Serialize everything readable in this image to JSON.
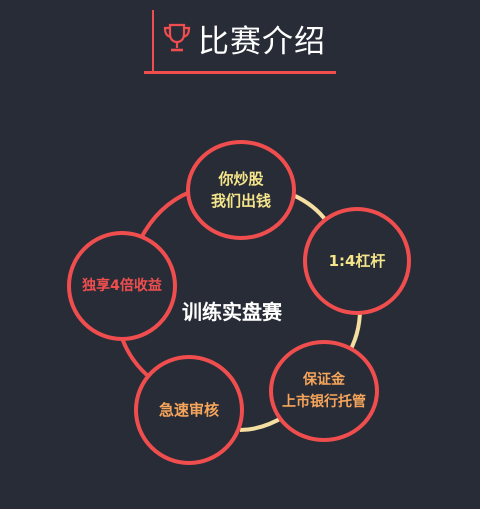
{
  "header": {
    "title": "比赛介绍",
    "icon": "trophy-icon"
  },
  "center": {
    "label": "训练实盘赛"
  },
  "colors": {
    "background": "#282c37",
    "accent_red": "#f04e4e",
    "ring_line": "#f5dfa0",
    "text_yellow": "#f5e58a",
    "text_orange": "#f6a55a",
    "text_red": "#f04e4e"
  },
  "nodes": [
    {
      "lines": [
        "你炒股",
        "我们出钱"
      ]
    },
    {
      "lines": [
        "1:4杠杆"
      ]
    },
    {
      "lines": [
        "保证金",
        "上市银行托管"
      ]
    },
    {
      "lines": [
        "急速审核"
      ]
    },
    {
      "lines": [
        "独享4倍收益"
      ]
    }
  ]
}
